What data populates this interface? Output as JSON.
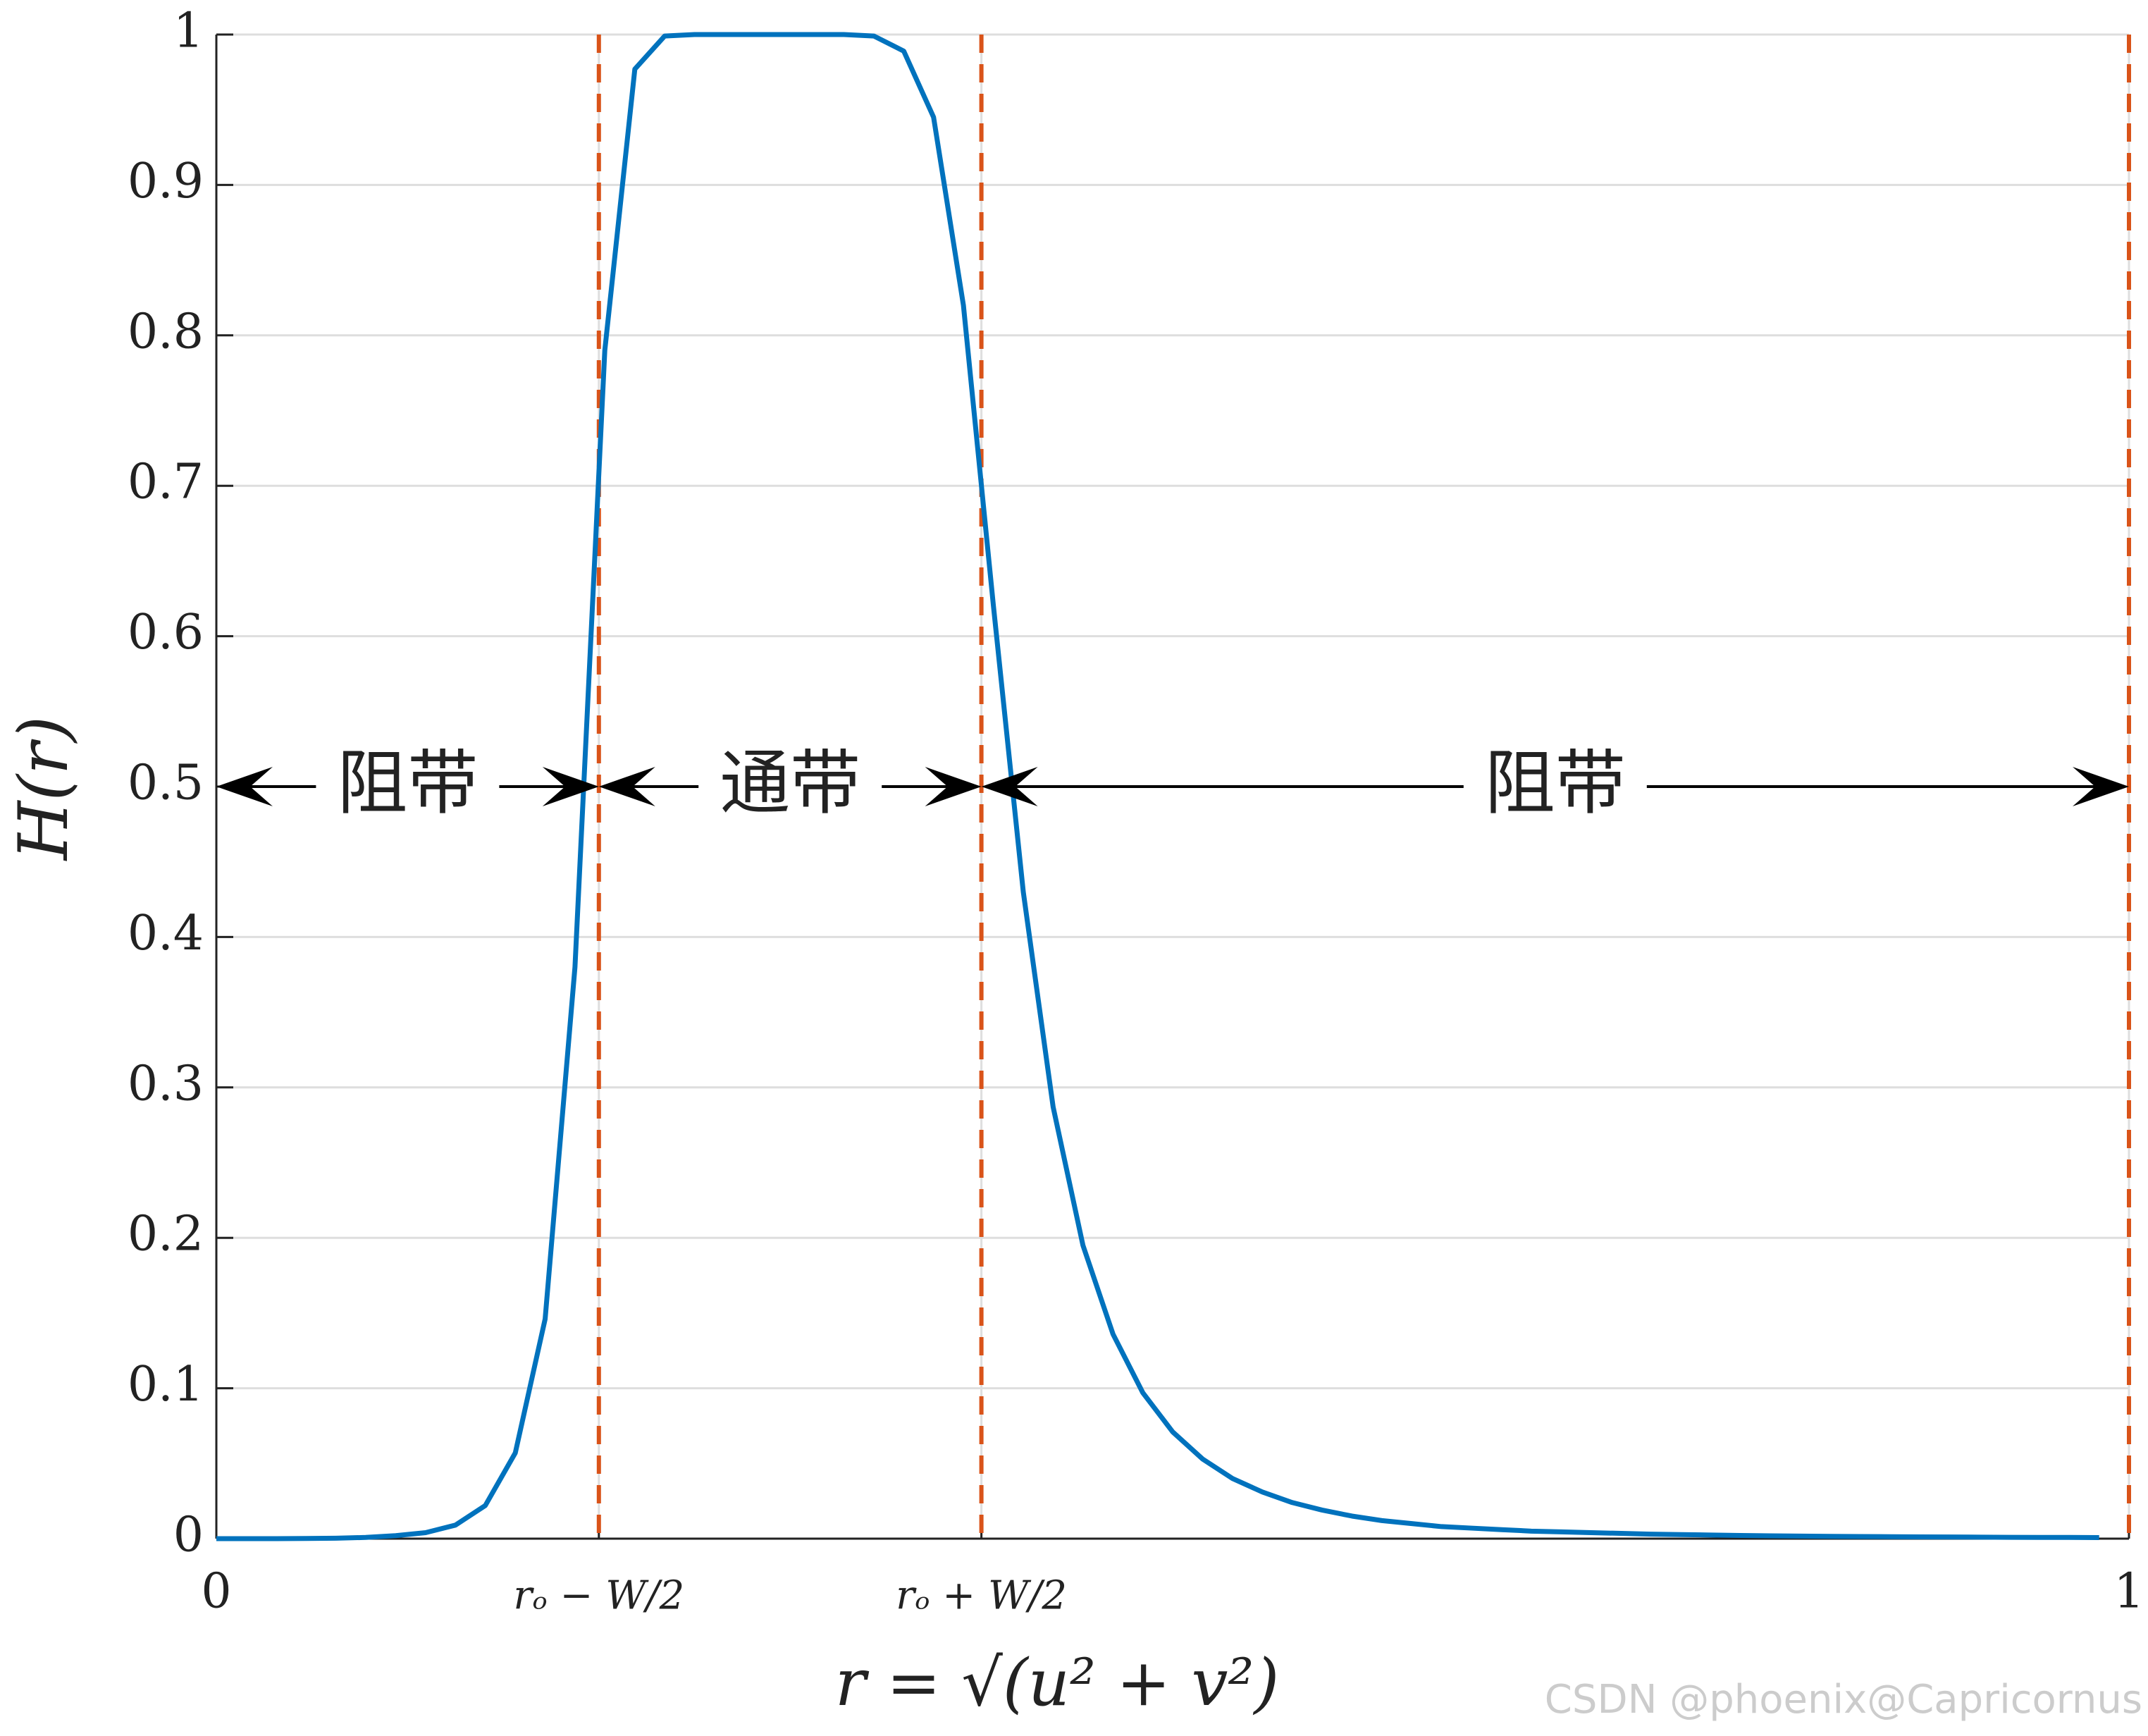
{
  "chart_data": {
    "type": "line",
    "x": [
      0,
      0.0156,
      0.0313,
      0.0469,
      0.0625,
      0.0781,
      0.0938,
      0.1094,
      0.125,
      0.1406,
      0.1563,
      0.1719,
      0.1875,
      0.2031,
      0.2188,
      0.2344,
      0.25,
      0.2656,
      0.2813,
      0.2969,
      0.3125,
      0.3281,
      0.3438,
      0.3594,
      0.375,
      0.3906,
      0.4063,
      0.4219,
      0.4375,
      0.4531,
      0.4688,
      0.4844,
      0.5,
      0.5156,
      0.5313,
      0.5469,
      0.5625,
      0.5781,
      0.5938,
      0.6094,
      0.625,
      0.6406,
      0.6563,
      0.6719,
      0.6875,
      0.7031,
      0.7188,
      0.7344,
      0.75,
      0.7656,
      0.7813,
      0.7969,
      0.8125,
      0.8281,
      0.8438,
      0.8594,
      0.875,
      0.8906,
      0.9063,
      0.9219,
      0.9375,
      0.9531,
      0.9688,
      0.9844
    ],
    "series": [
      {
        "color": "#0072bd",
        "values": [
          0,
          0,
          0,
          0.0001,
          0.0003,
          0.0008,
          0.002,
          0.004,
          0.009,
          0.022,
          0.057,
          0.146,
          0.38,
          0.79,
          0.977,
          0.999,
          1,
          1,
          1,
          1,
          1,
          1,
          0.999,
          0.989,
          0.945,
          0.82,
          0.62,
          0.43,
          0.287,
          0.195,
          0.136,
          0.097,
          0.071,
          0.053,
          0.04,
          0.031,
          0.024,
          0.019,
          0.015,
          0.012,
          0.01,
          0.008,
          0.007,
          0.006,
          0.005,
          0.0045,
          0.004,
          0.0035,
          0.003,
          0.0027,
          0.0024,
          0.0021,
          0.0019,
          0.0017,
          0.0015,
          0.0014,
          0.0013,
          0.0012,
          0.0011,
          0.001,
          0.0009,
          0.0008,
          0.0008,
          0.0007
        ]
      }
    ],
    "xlim": [
      0,
      1
    ],
    "ylim": [
      0,
      1
    ],
    "xticks": [
      0,
      {
        "value": 0.2,
        "label": "rₒ − W/2"
      },
      {
        "value": 0.4,
        "label": "rₒ + W/2"
      },
      1
    ],
    "yticks": [
      0,
      0.1,
      0.2,
      0.3,
      0.4,
      0.5,
      0.6,
      0.7,
      0.8,
      0.9,
      1
    ],
    "grid": true,
    "xlabel": "r = √(u² + v²)",
    "ylabel": "H(r)",
    "reference_lines": {
      "color": "#d95319",
      "x": [
        0.2,
        0.4,
        1
      ]
    },
    "annotations": [
      {
        "text": "阻带",
        "from": 0,
        "to": 0.2,
        "y": 0.5
      },
      {
        "text": "通带",
        "from": 0.2,
        "to": 0.4,
        "y": 0.5
      },
      {
        "text": "阻带",
        "from": 0.4,
        "to": 1,
        "y": 0.5
      }
    ],
    "watermark": "CSDN @phoenix@Capricornus"
  }
}
